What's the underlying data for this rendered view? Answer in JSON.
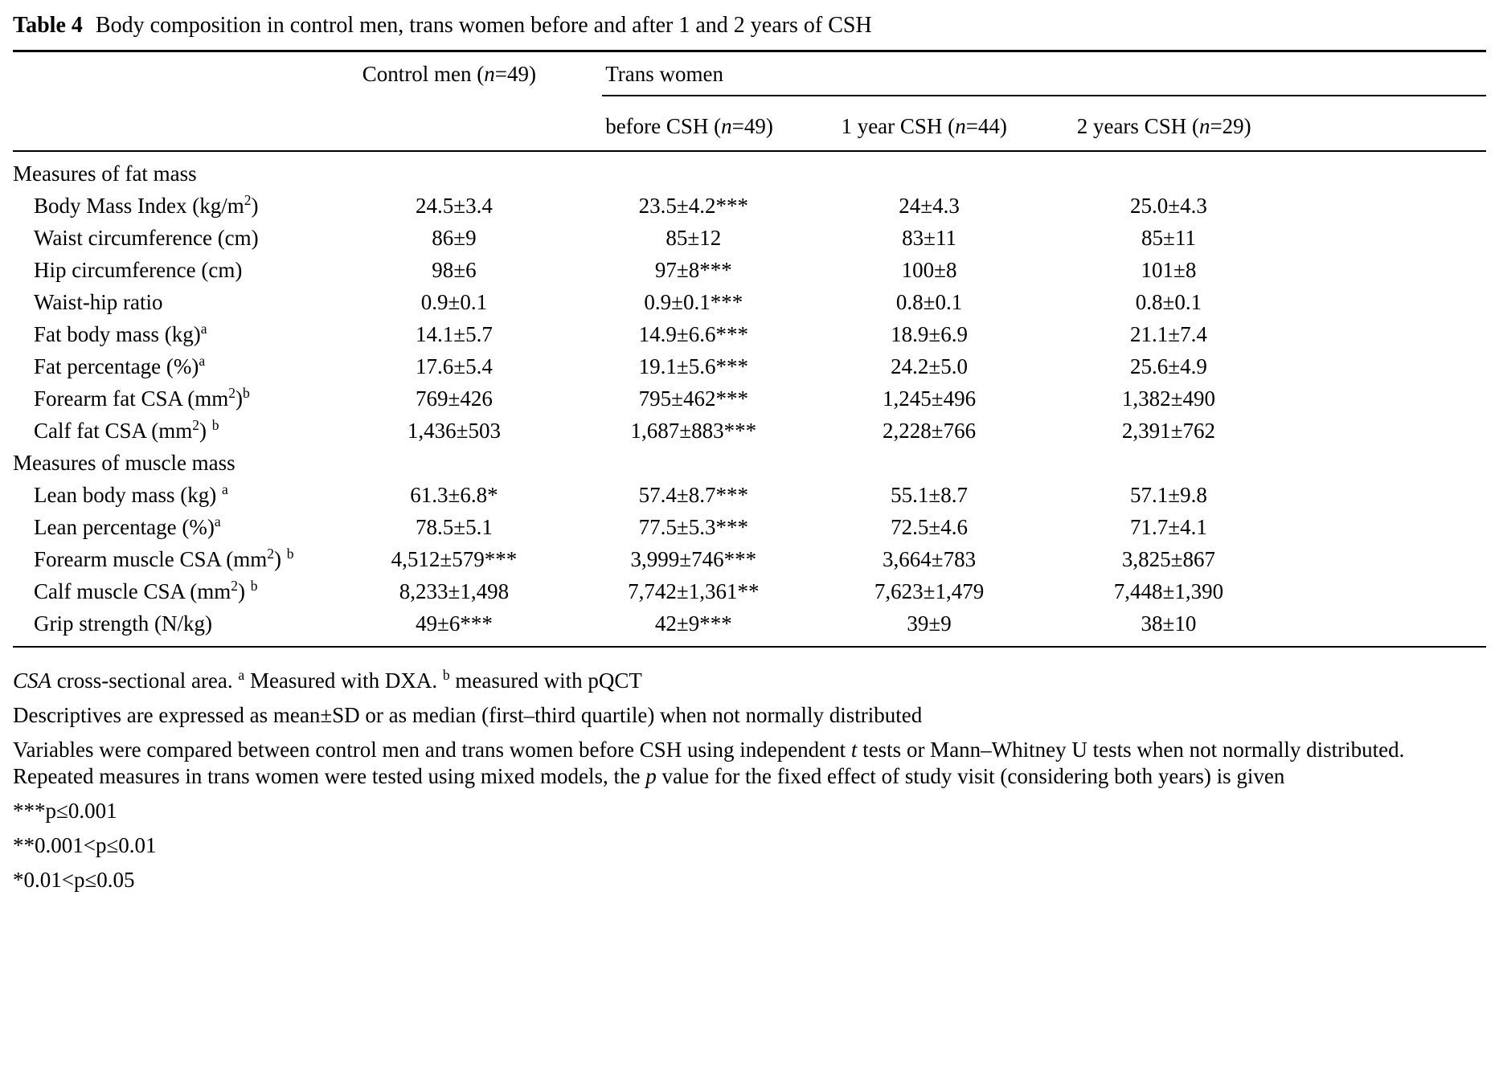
{
  "caption": {
    "label": "Table 4",
    "text": "Body composition in control men, trans women before and after 1 and 2 years of CSH"
  },
  "table": {
    "headers": {
      "control": "Control men (<i>n</i>=49)",
      "group": "Trans women",
      "before": "before CSH (<i>n</i>=49)",
      "year1": "1 year CSH (<i>n</i>=44)",
      "year2": "2 years CSH (<i>n</i>=29)"
    },
    "sections": [
      {
        "heading": "Measures of fat mass",
        "rows": [
          {
            "label": "Body Mass Index (kg/m<sup>2</sup>)",
            "values": [
              "24.5±3.4",
              "23.5±4.2***",
              "24±4.3",
              "25.0±4.3"
            ]
          },
          {
            "label": "Waist circumference (cm)",
            "values": [
              "86±9",
              "85±12",
              "83±11",
              "85±11"
            ]
          },
          {
            "label": "Hip circumference (cm)",
            "values": [
              "98±6",
              "97±8***",
              "100±8",
              "101±8"
            ]
          },
          {
            "label": "Waist-hip ratio",
            "values": [
              "0.9±0.1",
              "0.9±0.1***",
              "0.8±0.1",
              "0.8±0.1"
            ]
          },
          {
            "label": "Fat body mass (kg)<sup>a</sup>",
            "values": [
              "14.1±5.7",
              "14.9±6.6***",
              "18.9±6.9",
              "21.1±7.4"
            ]
          },
          {
            "label": "Fat percentage (%)<sup>a</sup>",
            "values": [
              "17.6±5.4",
              "19.1±5.6***",
              "24.2±5.0",
              "25.6±4.9"
            ]
          },
          {
            "label": "Forearm fat CSA (mm<sup>2</sup>)<sup>b</sup>",
            "values": [
              "769±426",
              "795±462***",
              "1,245±496",
              "1,382±490"
            ]
          },
          {
            "label": "Calf fat CSA (mm<sup>2</sup>) <sup>b</sup>",
            "values": [
              "1,436±503",
              "1,687±883***",
              "2,228±766",
              "2,391±762"
            ]
          }
        ]
      },
      {
        "heading": "Measures of muscle mass",
        "rows": [
          {
            "label": "Lean body mass (kg) <sup>a</sup>",
            "values": [
              "61.3±6.8*",
              "57.4±8.7***",
              "55.1±8.7",
              "57.1±9.8"
            ]
          },
          {
            "label": "Lean percentage (%)<sup>a</sup>",
            "values": [
              "78.5±5.1",
              "77.5±5.3***",
              "72.5±4.6",
              "71.7±4.1"
            ]
          },
          {
            "label": "Forearm muscle CSA (mm<sup>2</sup>) <sup>b</sup>",
            "values": [
              "4,512±579***",
              "3,999±746***",
              "3,664±783",
              "3,825±867"
            ]
          },
          {
            "label": "Calf muscle CSA (mm<sup>2</sup>) <sup>b</sup>",
            "values": [
              "8,233±1,498",
              "7,742±1,361**",
              "7,623±1,479",
              "7,448±1,390"
            ]
          },
          {
            "label": "Grip strength (N/kg)",
            "values": [
              "49±6***",
              "42±9***",
              "39±9",
              "38±10"
            ]
          }
        ]
      }
    ]
  },
  "footnotes": {
    "abbrev": "<i>CSA</i> cross-sectional area. <sup>a</sup> Measured with DXA. <sup>b</sup> measured with pQCT",
    "descriptives": "Descriptives are expressed as mean±SD or as median (first–third quartile) when not normally distributed",
    "methods": "Variables were compared between control men and trans women before CSH using independent <i>t</i> tests or Mann–Whitney U tests when not normally distributed. Repeated measures in trans women were tested using mixed models, the <i>p</i> value for the fixed effect of study visit (considering both years) is given",
    "sig3": "***p≤0.001",
    "sig2": "**0.001<p≤0.01",
    "sig1": "*0.01<p≤0.05"
  }
}
